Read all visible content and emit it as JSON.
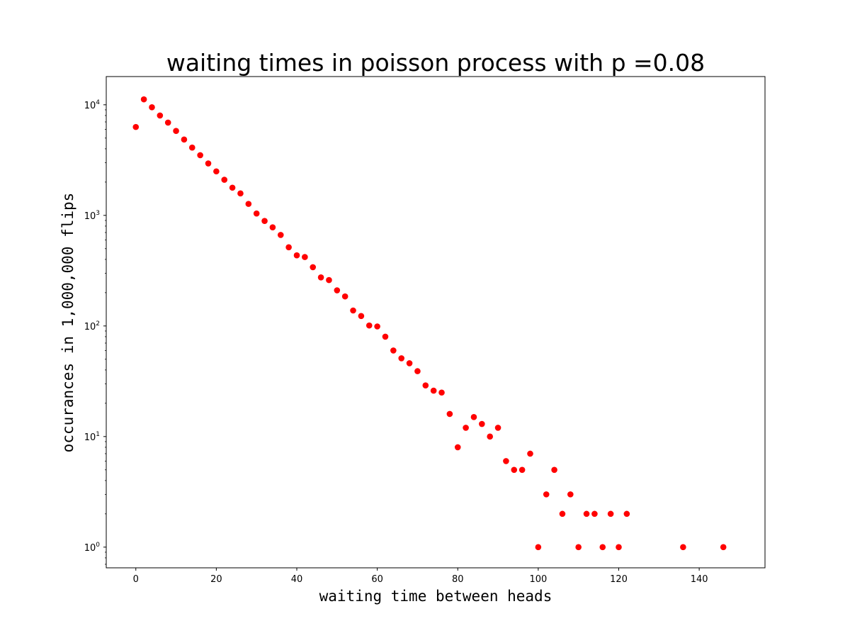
{
  "chart_data": {
    "type": "scatter",
    "title": "waiting times in poisson process with p =0.08",
    "xlabel": "waiting time between heads",
    "ylabel": "occurances  in 1,000,000 flips",
    "x_scale": "linear",
    "y_scale": "log",
    "xlim": [
      -7.35,
      156.35
    ],
    "ylim": [
      0.65,
      18000
    ],
    "x_ticks": [
      0,
      20,
      40,
      60,
      80,
      100,
      120,
      140
    ],
    "y_ticks": [
      {
        "value": 1,
        "base": "10",
        "exp": "0"
      },
      {
        "value": 10,
        "base": "10",
        "exp": "1"
      },
      {
        "value": 100,
        "base": "10",
        "exp": "2"
      },
      {
        "value": 1000,
        "base": "10",
        "exp": "3"
      },
      {
        "value": 10000,
        "base": "10",
        "exp": "4"
      }
    ],
    "grid": false,
    "legend": "none",
    "marker_color": "#ff0000",
    "series": [
      {
        "points": [
          [
            0,
            6300
          ],
          [
            2,
            11200
          ],
          [
            4,
            9500
          ],
          [
            6,
            8000
          ],
          [
            8,
            6900
          ],
          [
            10,
            5800
          ],
          [
            12,
            4850
          ],
          [
            14,
            4100
          ],
          [
            16,
            3500
          ],
          [
            18,
            2950
          ],
          [
            20,
            2500
          ],
          [
            22,
            2100
          ],
          [
            24,
            1780
          ],
          [
            26,
            1580
          ],
          [
            28,
            1270
          ],
          [
            30,
            1040
          ],
          [
            32,
            890
          ],
          [
            34,
            780
          ],
          [
            36,
            665
          ],
          [
            38,
            515
          ],
          [
            40,
            435
          ],
          [
            42,
            420
          ],
          [
            44,
            340
          ],
          [
            46,
            275
          ],
          [
            48,
            260
          ],
          [
            50,
            210
          ],
          [
            52,
            185
          ],
          [
            54,
            138
          ],
          [
            56,
            123
          ],
          [
            58,
            101
          ],
          [
            60,
            99
          ],
          [
            62,
            80
          ],
          [
            64,
            60
          ],
          [
            66,
            51
          ],
          [
            68,
            46
          ],
          [
            70,
            39
          ],
          [
            72,
            29
          ],
          [
            74,
            26
          ],
          [
            76,
            25
          ],
          [
            78,
            16
          ],
          [
            80,
            8
          ],
          [
            82,
            12
          ],
          [
            84,
            15
          ],
          [
            86,
            13
          ],
          [
            88,
            10
          ],
          [
            90,
            12
          ],
          [
            92,
            6
          ],
          [
            94,
            5
          ],
          [
            96,
            5
          ],
          [
            98,
            7
          ],
          [
            100,
            1
          ],
          [
            102,
            3
          ],
          [
            104,
            5
          ],
          [
            106,
            2
          ],
          [
            108,
            3
          ],
          [
            110,
            1
          ],
          [
            112,
            2
          ],
          [
            114,
            2
          ],
          [
            116,
            1
          ],
          [
            118,
            2
          ],
          [
            120,
            1
          ],
          [
            122,
            2
          ],
          [
            136,
            1
          ],
          [
            146,
            1
          ]
        ]
      }
    ]
  }
}
